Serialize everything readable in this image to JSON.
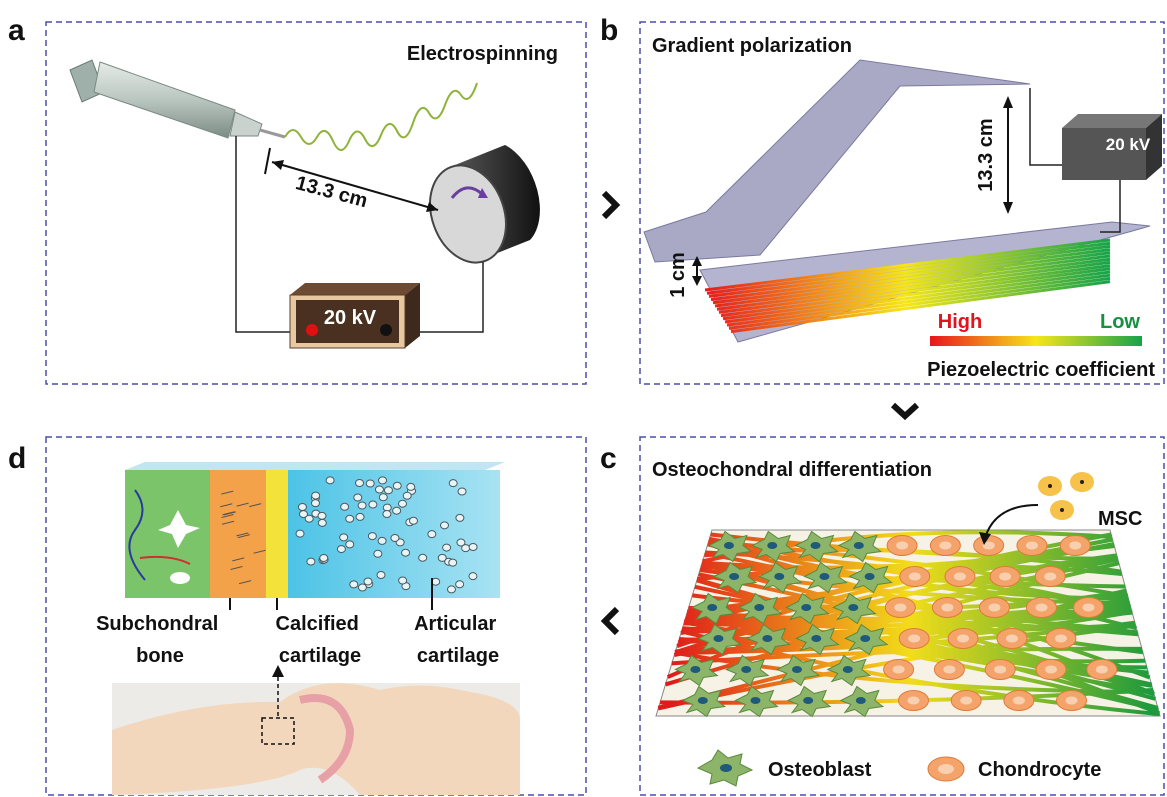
{
  "panels": {
    "a": {
      "letter": "a",
      "title": "Electrospinning",
      "distance": "13.3 cm",
      "voltage": "20 kV"
    },
    "b": {
      "letter": "b",
      "title": "Gradient polarization",
      "voltage": "20 kV",
      "distance": "13.3 cm",
      "gap": "1 cm",
      "high": "High",
      "low": "Low",
      "scale_label": "Piezoelectric coefficient"
    },
    "c": {
      "letter": "c",
      "title": "Osteochondral differentiation",
      "cell": "MSC",
      "legend": [
        "Osteoblast",
        "Chondrocyte"
      ]
    },
    "d": {
      "letter": "d",
      "labels": [
        [
          "Subchondral",
          "bone"
        ],
        [
          "Calcified",
          "cartilage"
        ],
        [
          "Articular",
          "cartilage"
        ]
      ]
    }
  }
}
